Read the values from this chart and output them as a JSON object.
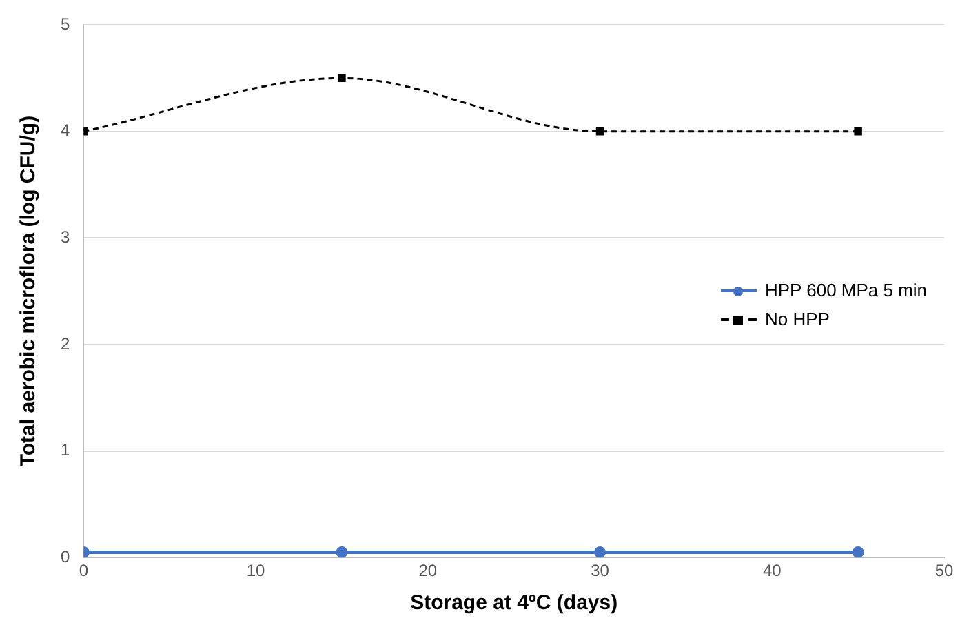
{
  "chart_data": {
    "type": "line",
    "xlabel": "Storage at 4ºC (days)",
    "ylabel": "Total aerobic microflora (log CFU/g)",
    "x": [
      0,
      15,
      30,
      45
    ],
    "series": [
      {
        "name": "HPP 600 MPa 5 min",
        "color": "#4472c4",
        "values": [
          0.05,
          0.05,
          0.05,
          0.05
        ],
        "marker": "circle",
        "line_style": "solid"
      },
      {
        "name": "No HPP",
        "color": "#000000",
        "values": [
          4,
          4.5,
          4,
          4
        ],
        "marker": "square",
        "line_style": "dashed"
      }
    ],
    "xlim": [
      0,
      50
    ],
    "xticks": [
      0,
      10,
      20,
      30,
      40,
      50
    ],
    "ylim": [
      0,
      5
    ],
    "yticks": [
      0,
      1,
      2,
      3,
      4,
      5
    ],
    "grid": "y",
    "legend": "right"
  }
}
